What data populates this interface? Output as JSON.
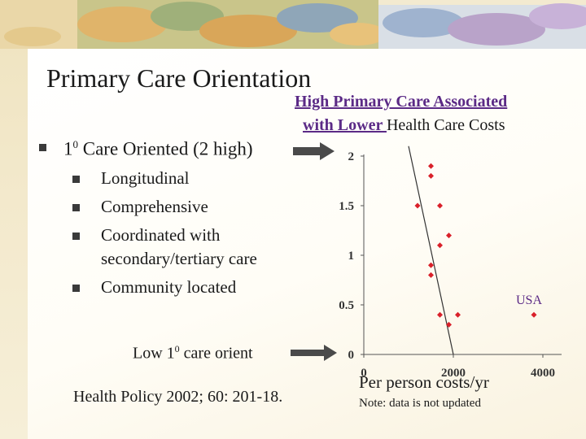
{
  "slide": {
    "title": "Primary Care Orientation",
    "headline_line1": "High Primary Care Associated",
    "headline_line2_underlined": "with Lower ",
    "headline_line2_rest": "Health Care Costs",
    "main_bullet_prefix": "1",
    "main_bullet_sup": "0",
    "main_bullet_rest": " Care Oriented (2 high)",
    "sub_bullets": [
      "Longitudinal",
      "Comprehensive",
      "Coordinated with",
      "secondary/tertiary care",
      "Community located"
    ],
    "low_label_prefix": "Low 1",
    "low_label_sup": "0",
    "low_label_rest": " care orient",
    "citation": "Health Policy 2002; 60: 201-18.",
    "x_axis_caption": "Per person costs/yr",
    "note": "Note: data is not updated",
    "point_label": "USA"
  },
  "colors": {
    "point": "#d9202a",
    "accent": "#5b2a86",
    "arrow": "#4a4a4a"
  },
  "chart_data": {
    "type": "scatter",
    "title": "",
    "xlabel": "Per person costs/yr",
    "ylabel": "",
    "xlim": [
      0,
      4000
    ],
    "ylim": [
      0,
      2
    ],
    "x_ticks": [
      "0",
      "2000",
      "4000"
    ],
    "y_ticks": [
      "0",
      "0.5",
      "1",
      "1.5",
      "2"
    ],
    "points": [
      {
        "x": 1500,
        "y": 1.9
      },
      {
        "x": 1500,
        "y": 1.8
      },
      {
        "x": 1200,
        "y": 1.5
      },
      {
        "x": 1700,
        "y": 1.5
      },
      {
        "x": 1900,
        "y": 1.2
      },
      {
        "x": 1700,
        "y": 1.1
      },
      {
        "x": 1500,
        "y": 0.9
      },
      {
        "x": 1500,
        "y": 0.8
      },
      {
        "x": 1700,
        "y": 0.4
      },
      {
        "x": 2100,
        "y": 0.4
      },
      {
        "x": 1900,
        "y": 0.3
      },
      {
        "x": 3800,
        "y": 0.4,
        "label": "USA"
      }
    ],
    "trend_line": [
      {
        "x": 1000,
        "y": 2.1
      },
      {
        "x": 2000,
        "y": 0.0
      }
    ]
  }
}
